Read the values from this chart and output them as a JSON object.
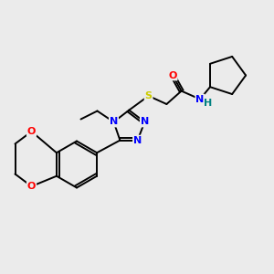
{
  "background_color": "#ebebeb",
  "bond_color": "#000000",
  "atom_colors": {
    "N": "#0000ff",
    "O": "#ff0000",
    "S": "#cccc00",
    "H": "#008080",
    "C": "#000000"
  },
  "figsize": [
    3.0,
    3.0
  ],
  "dpi": 100
}
